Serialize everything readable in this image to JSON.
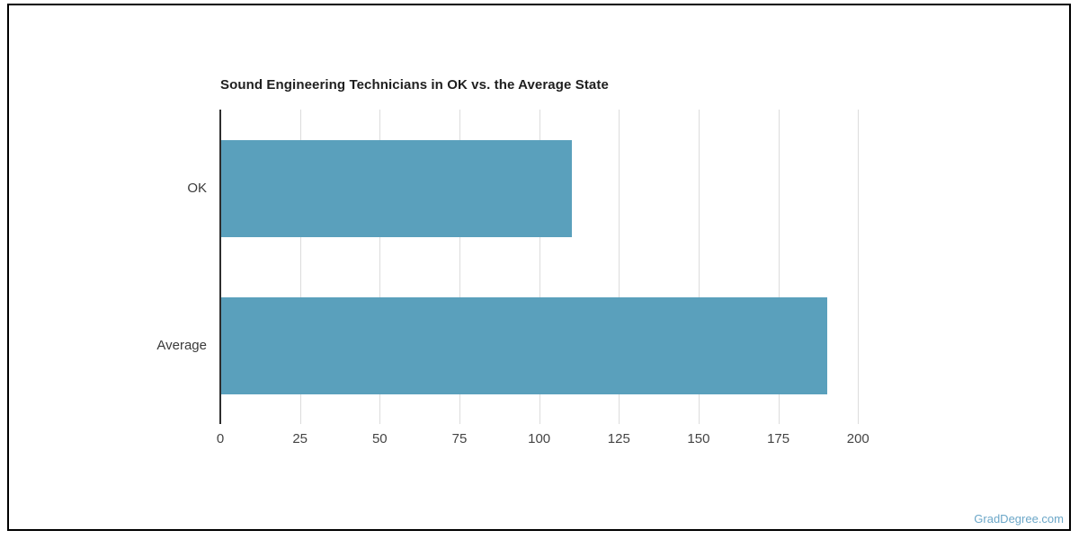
{
  "page": {
    "watermark": "GradDegree.com",
    "colors": {
      "bar": "#5aa0bc",
      "axis_line": "#2e2e2e",
      "gridline": "#dcdcdc",
      "title_text": "#1f1f1f",
      "tick_text": "#444444",
      "watermark_text": "#6ca7c8",
      "frame_border": "#000000",
      "background": "#ffffff"
    }
  },
  "chart_data": {
    "type": "bar",
    "orientation": "horizontal",
    "title": "Sound Engineering Technicians in OK vs. the Average State",
    "categories": [
      "OK",
      "Average"
    ],
    "values": [
      110,
      190
    ],
    "xlabel": "",
    "ylabel": "",
    "xlim": [
      0,
      216
    ],
    "xticks": [
      0,
      25,
      50,
      75,
      100,
      125,
      150,
      175,
      200
    ],
    "grid": true,
    "legend": false,
    "bar_color": "#5aa0bc"
  }
}
